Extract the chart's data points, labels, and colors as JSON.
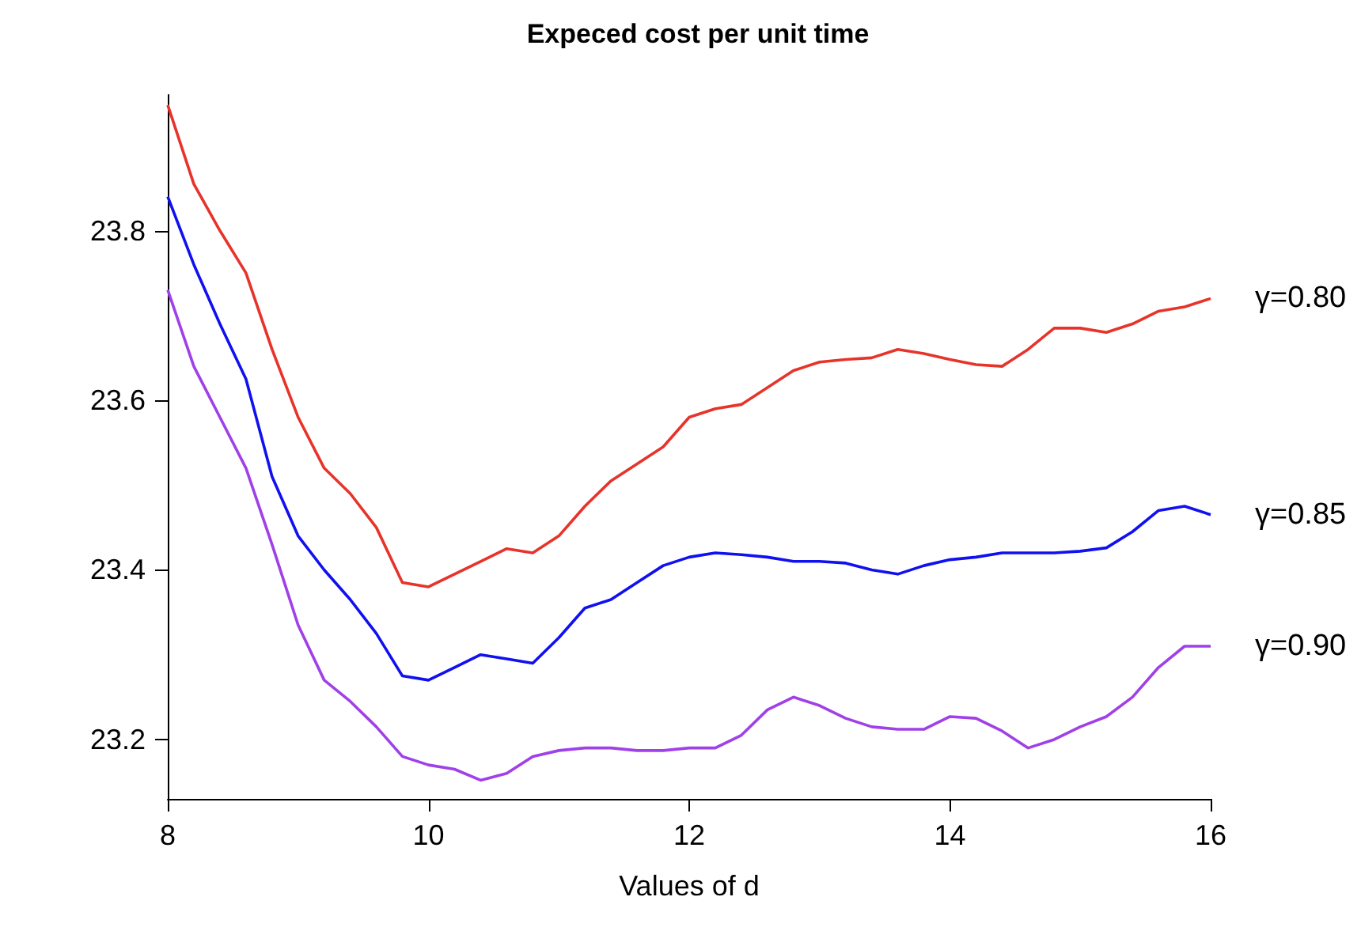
{
  "chart_data": {
    "type": "line",
    "title": "Expeced cost per unit time",
    "xlabel": "Values of d",
    "x": [
      8,
      8.2,
      8.4,
      8.6,
      8.8,
      9,
      9.2,
      9.4,
      9.6,
      9.8,
      10,
      10.2,
      10.4,
      10.6,
      10.8,
      11,
      11.2,
      11.4,
      11.6,
      11.8,
      12,
      12.2,
      12.4,
      12.6,
      12.8,
      13,
      13.2,
      13.4,
      13.6,
      13.8,
      14,
      14.2,
      14.4,
      14.6,
      14.8,
      15,
      15.2,
      15.4,
      15.6,
      15.8,
      16
    ],
    "series": [
      {
        "name": "γ=0.80",
        "color": "#e8332a",
        "values": [
          23.948,
          23.855,
          23.8,
          23.75,
          23.66,
          23.58,
          23.52,
          23.49,
          23.45,
          23.385,
          23.38,
          23.395,
          23.41,
          23.425,
          23.42,
          23.44,
          23.475,
          23.505,
          23.525,
          23.545,
          23.58,
          23.59,
          23.595,
          23.615,
          23.635,
          23.645,
          23.648,
          23.65,
          23.66,
          23.655,
          23.648,
          23.642,
          23.64,
          23.66,
          23.685,
          23.685,
          23.68,
          23.69,
          23.705,
          23.71,
          23.72
        ]
      },
      {
        "name": "γ=0.85",
        "color": "#1010f0",
        "values": [
          23.84,
          23.76,
          23.69,
          23.625,
          23.51,
          23.44,
          23.4,
          23.365,
          23.325,
          23.275,
          23.27,
          23.285,
          23.3,
          23.295,
          23.29,
          23.32,
          23.355,
          23.365,
          23.385,
          23.405,
          23.415,
          23.42,
          23.418,
          23.415,
          23.41,
          23.41,
          23.408,
          23.4,
          23.395,
          23.405,
          23.412,
          23.415,
          23.42,
          23.42,
          23.42,
          23.422,
          23.426,
          23.445,
          23.47,
          23.475,
          23.465
        ]
      },
      {
        "name": "γ=0.90",
        "color": "#a040e8",
        "values": [
          23.73,
          23.64,
          23.58,
          23.52,
          23.43,
          23.335,
          23.27,
          23.245,
          23.215,
          23.18,
          23.17,
          23.165,
          23.152,
          23.16,
          23.18,
          23.187,
          23.19,
          23.19,
          23.187,
          23.187,
          23.19,
          23.19,
          23.205,
          23.235,
          23.25,
          23.24,
          23.225,
          23.215,
          23.212,
          23.212,
          23.227,
          23.225,
          23.21,
          23.19,
          23.2,
          23.215,
          23.227,
          23.25,
          23.285,
          23.31,
          23.31
        ]
      }
    ],
    "xlim": [
      8,
      16
    ],
    "xticks": [
      8,
      10,
      12,
      14,
      16
    ],
    "ylim": [
      23.13,
      23.96
    ],
    "yticks": [
      23.2,
      23.4,
      23.6,
      23.8
    ],
    "grid": false,
    "legend": false,
    "marker": "none",
    "line_style": "solid"
  }
}
